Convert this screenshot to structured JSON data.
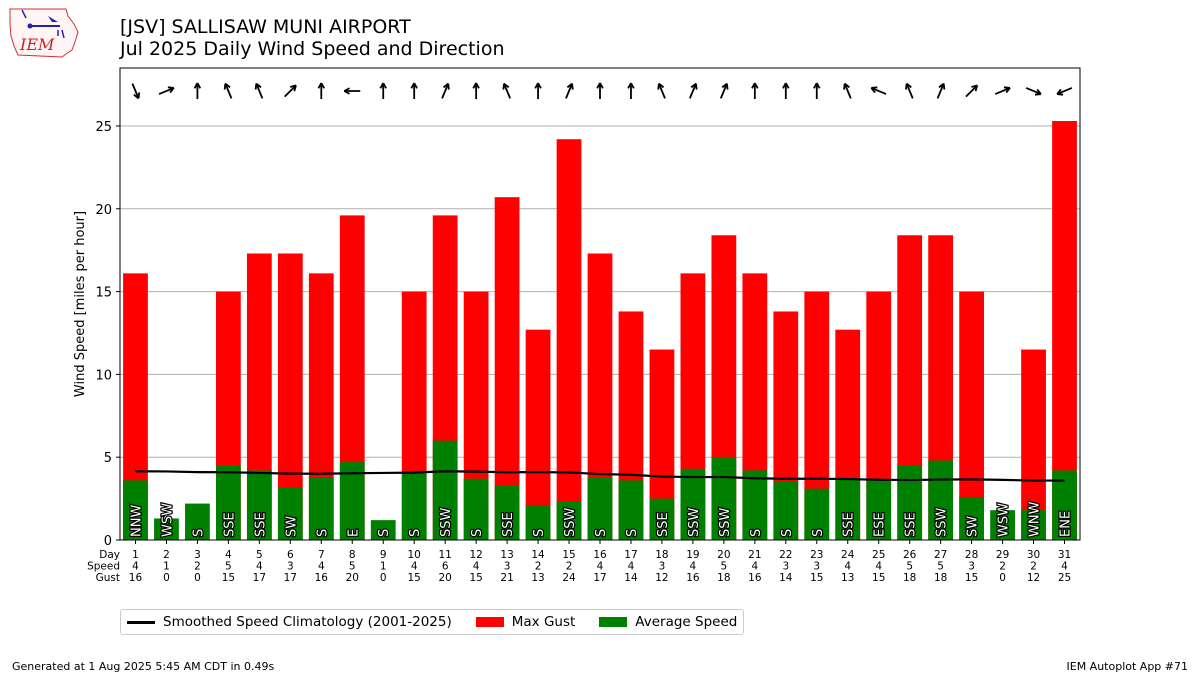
{
  "header": {
    "logo_text": "IEM",
    "title_line1": "[JSV] SALLISAW MUNI AIRPORT",
    "title_line2": "Jul 2025 Daily Wind Speed and Direction"
  },
  "footer": {
    "left": "Generated at 1 Aug 2025 5:45 AM CDT in 0.49s",
    "right": "IEM Autoplot App #71"
  },
  "colors": {
    "gust": "#ff0000",
    "avg": "#008000",
    "climo": "#000000",
    "grid": "#b0b0b0"
  },
  "chart_data": {
    "type": "bar",
    "title": "[JSV] SALLISAW MUNI AIRPORT",
    "subtitle": "Jul 2025 Daily Wind Speed and Direction",
    "xlabel": "",
    "ylabel": "Wind Speed [miles per hour]",
    "ylim": [
      0,
      28.5
    ],
    "yticks": [
      0,
      5,
      10,
      15,
      20,
      25
    ],
    "grid": true,
    "legend_position": "bottom-left",
    "row_labels": [
      "Day",
      "Speed",
      "Gust"
    ],
    "days": [
      1,
      2,
      3,
      4,
      5,
      6,
      7,
      8,
      9,
      10,
      11,
      12,
      13,
      14,
      15,
      16,
      17,
      18,
      19,
      20,
      21,
      22,
      23,
      24,
      25,
      26,
      27,
      28,
      29,
      30,
      31
    ],
    "speed_labels": [
      "4",
      "1",
      "2",
      "5",
      "4",
      "3",
      "4",
      "5",
      "1",
      "4",
      "6",
      "4",
      "3",
      "2",
      "2",
      "4",
      "4",
      "3",
      "4",
      "5",
      "4",
      "3",
      "3",
      "4",
      "4",
      "5",
      "5",
      "3",
      "2",
      "2",
      "4"
    ],
    "gust_labels": [
      "16",
      "0",
      "0",
      "15",
      "17",
      "17",
      "16",
      "20",
      "0",
      "15",
      "20",
      "15",
      "21",
      "13",
      "24",
      "17",
      "14",
      "12",
      "16",
      "18",
      "16",
      "14",
      "15",
      "13",
      "15",
      "18",
      "18",
      "15",
      "0",
      "12",
      "25"
    ],
    "directions": [
      "NNW",
      "WSW",
      "S",
      "SSE",
      "SSE",
      "SW",
      "S",
      "E",
      "S",
      "S",
      "SSW",
      "S",
      "SSE",
      "S",
      "SSW",
      "S",
      "S",
      "SSE",
      "SSW",
      "SSW",
      "S",
      "S",
      "S",
      "SSE",
      "ESE",
      "SSE",
      "SSW",
      "SW",
      "WSW",
      "WNW",
      "ENE"
    ],
    "arrow_degrees": [
      337.5,
      247.5,
      180,
      157.5,
      157.5,
      225,
      180,
      90,
      180,
      180,
      202.5,
      180,
      157.5,
      180,
      202.5,
      180,
      180,
      157.5,
      202.5,
      202.5,
      180,
      180,
      180,
      157.5,
      112.5,
      157.5,
      202.5,
      225,
      247.5,
      292.5,
      67.5
    ],
    "series": [
      {
        "name": "Max Gust",
        "values": [
          16.1,
          0,
          0,
          15.0,
          17.3,
          17.3,
          16.1,
          19.6,
          0,
          15.0,
          19.6,
          15.0,
          20.7,
          12.7,
          24.2,
          17.3,
          13.8,
          11.5,
          16.1,
          18.4,
          16.1,
          13.8,
          15.0,
          12.7,
          15.0,
          18.4,
          18.4,
          15.0,
          0,
          11.5,
          25.3
        ]
      },
      {
        "name": "Average Speed",
        "values": [
          3.6,
          1.3,
          2.2,
          4.5,
          4.2,
          3.2,
          3.8,
          4.7,
          1.2,
          4.0,
          6.0,
          3.7,
          3.3,
          2.1,
          2.3,
          3.8,
          3.6,
          2.5,
          4.3,
          5.0,
          4.2,
          3.5,
          3.1,
          3.8,
          3.6,
          4.5,
          4.8,
          2.6,
          1.8,
          1.8,
          4.2
        ]
      },
      {
        "name": "Smoothed Speed Climatology (2001-2025)",
        "values": [
          4.15,
          4.14,
          4.1,
          4.09,
          4.05,
          4.01,
          4.0,
          4.03,
          4.05,
          4.07,
          4.15,
          4.13,
          4.09,
          4.1,
          4.08,
          3.98,
          3.94,
          3.83,
          3.8,
          3.8,
          3.73,
          3.7,
          3.7,
          3.68,
          3.64,
          3.62,
          3.65,
          3.66,
          3.63,
          3.59,
          3.59
        ]
      }
    ]
  }
}
